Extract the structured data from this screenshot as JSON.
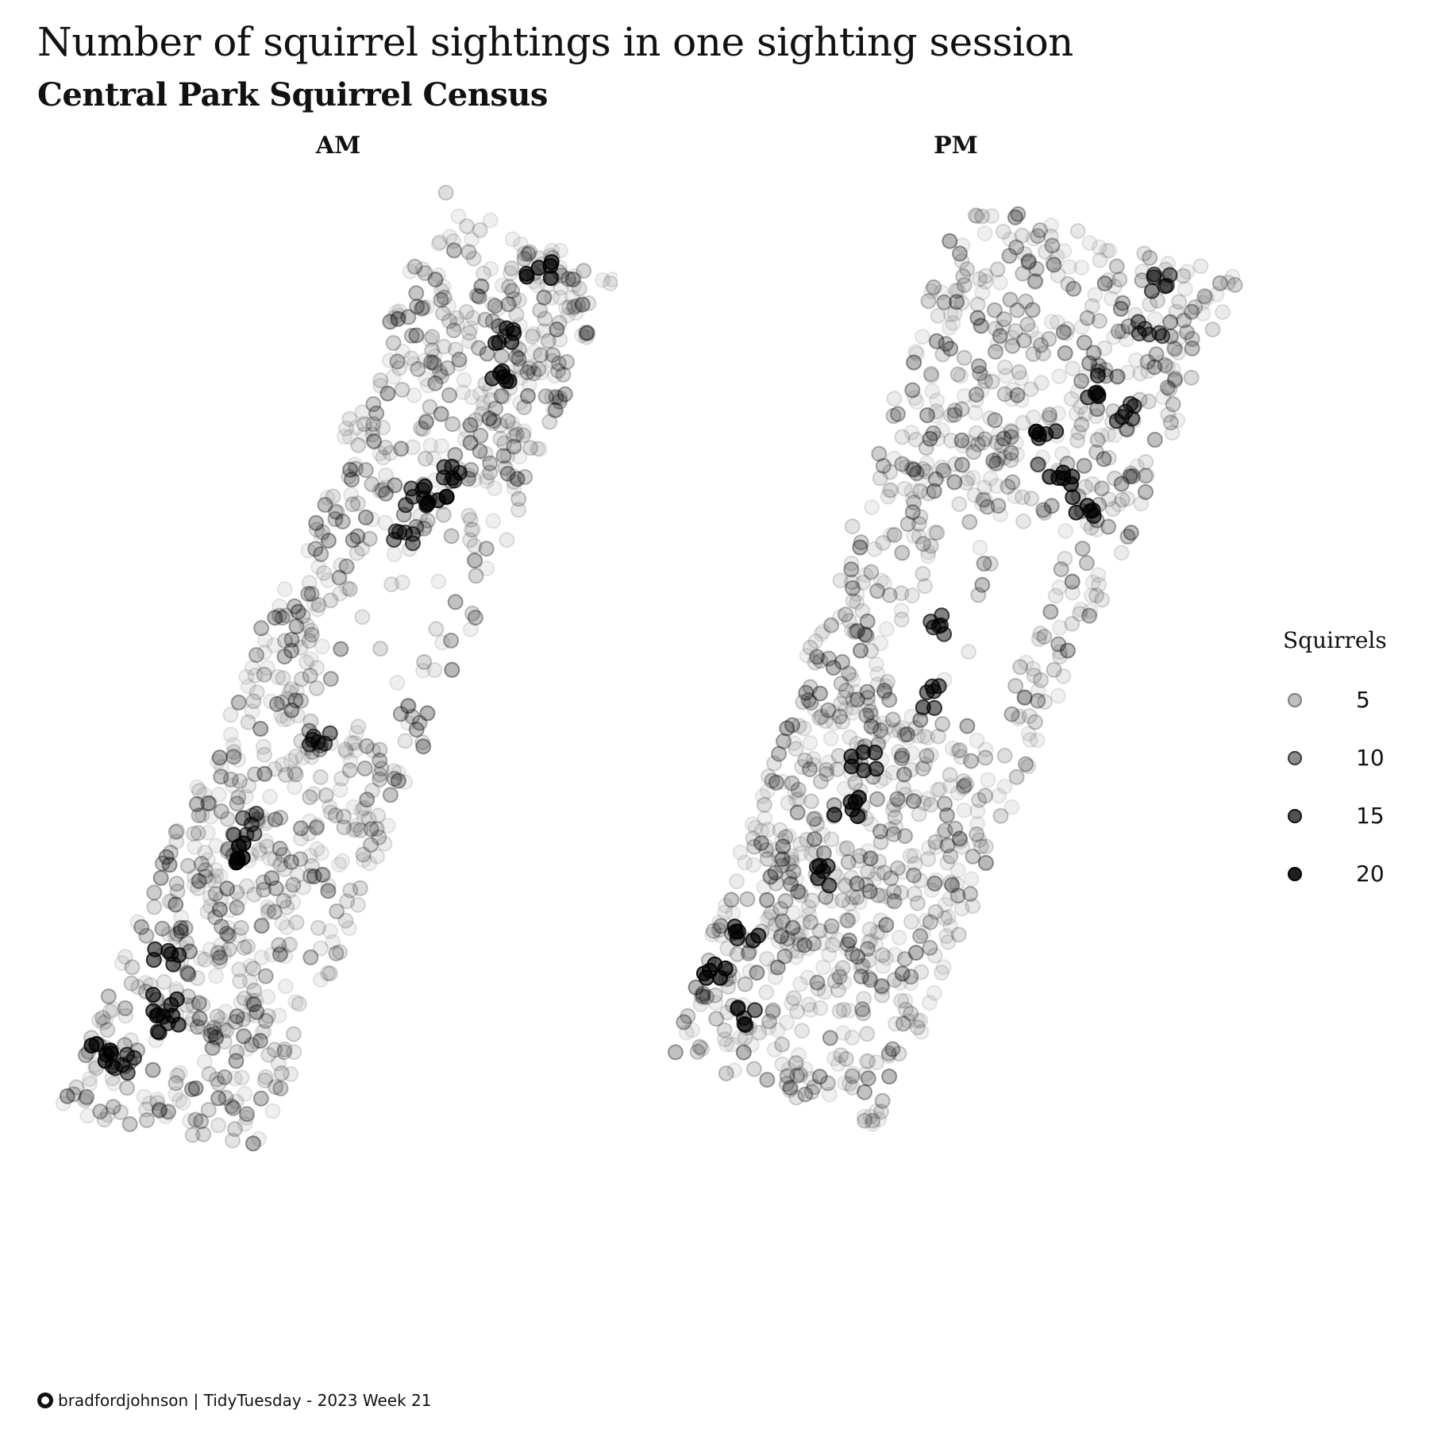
{
  "title": "Number of squirrel sightings in one sighting session",
  "subtitle": "Central Park Squirrel Census",
  "caption": "bradfordjohnson | TidyTuesday - 2023 Week 21",
  "caption_icon": "github-icon",
  "legend": {
    "title": "Squirrels",
    "items": [
      {
        "label": "5",
        "value": 5
      },
      {
        "label": "10",
        "value": 10
      },
      {
        "label": "15",
        "value": 15
      },
      {
        "label": "20",
        "value": 20
      }
    ]
  },
  "chart_data": {
    "type": "scatter",
    "facets": [
      "AM",
      "PM"
    ],
    "encoding": "point alpha proportional to number of squirrels seen in one sighting session",
    "color": "#000000",
    "size_range": [
      1,
      23
    ],
    "panels": [
      {
        "name": "AM",
        "hotspots": [
          {
            "x": 0.62,
            "y": 0.03,
            "value": 20
          },
          {
            "x": 0.58,
            "y": 0.11,
            "value": 18
          },
          {
            "x": 0.66,
            "y": 0.15,
            "value": 19
          },
          {
            "x": 0.6,
            "y": 0.26,
            "value": 17
          },
          {
            "x": 0.56,
            "y": 0.29,
            "value": 20
          },
          {
            "x": 0.49,
            "y": 0.3,
            "value": 16
          },
          {
            "x": 0.51,
            "y": 0.34,
            "value": 15
          },
          {
            "x": 0.48,
            "y": 0.56,
            "value": 15
          },
          {
            "x": 0.32,
            "y": 0.67,
            "value": 14
          },
          {
            "x": 0.32,
            "y": 0.7,
            "value": 23
          },
          {
            "x": 0.2,
            "y": 0.82,
            "value": 18
          },
          {
            "x": 0.28,
            "y": 0.87,
            "value": 19
          },
          {
            "x": 0.34,
            "y": 0.89,
            "value": 17
          },
          {
            "x": 0.08,
            "y": 0.93,
            "value": 21
          },
          {
            "x": 0.2,
            "y": 0.94,
            "value": 16
          }
        ]
      },
      {
        "name": "PM",
        "hotspots": [
          {
            "x": 0.74,
            "y": 0.03,
            "value": 15
          },
          {
            "x": 0.78,
            "y": 0.08,
            "value": 14
          },
          {
            "x": 0.68,
            "y": 0.16,
            "value": 17
          },
          {
            "x": 0.82,
            "y": 0.18,
            "value": 16
          },
          {
            "x": 0.57,
            "y": 0.23,
            "value": 18
          },
          {
            "x": 0.69,
            "y": 0.27,
            "value": 20
          },
          {
            "x": 0.8,
            "y": 0.29,
            "value": 19
          },
          {
            "x": 0.42,
            "y": 0.46,
            "value": 16
          },
          {
            "x": 0.5,
            "y": 0.54,
            "value": 17
          },
          {
            "x": 0.36,
            "y": 0.63,
            "value": 19
          },
          {
            "x": 0.35,
            "y": 0.68,
            "value": 20
          },
          {
            "x": 0.38,
            "y": 0.76,
            "value": 18
          },
          {
            "x": 0.15,
            "y": 0.85,
            "value": 19
          },
          {
            "x": 0.08,
            "y": 0.9,
            "value": 21
          },
          {
            "x": 0.26,
            "y": 0.93,
            "value": 17
          }
        ]
      }
    ],
    "xlabel": "",
    "ylabel": "",
    "grid": false,
    "axes": false,
    "legend_position": "right"
  }
}
